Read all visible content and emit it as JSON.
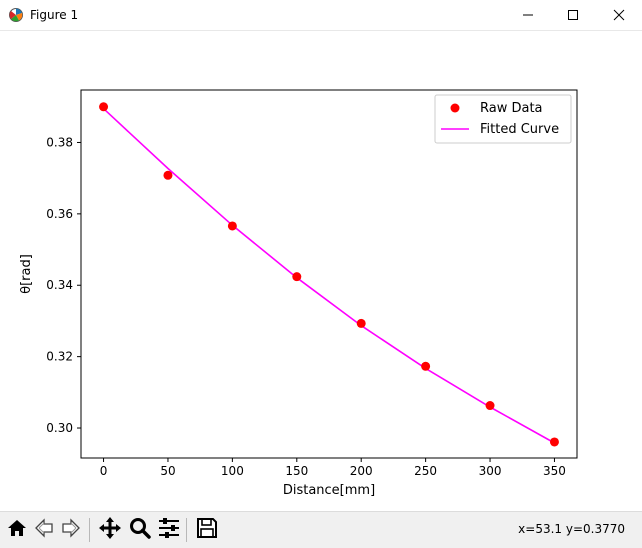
{
  "window": {
    "title": "Figure 1",
    "icons": {
      "app": "matplotlib-icon",
      "minimize": "minimize-icon",
      "maximize": "maximize-icon",
      "close": "close-icon"
    }
  },
  "toolbar": {
    "buttons": [
      {
        "name": "home",
        "icon": "home-icon"
      },
      {
        "name": "back",
        "icon": "back-arrow-icon"
      },
      {
        "name": "forward",
        "icon": "forward-arrow-icon"
      },
      {
        "name": "pan",
        "icon": "move-icon"
      },
      {
        "name": "zoom",
        "icon": "magnifier-icon"
      },
      {
        "name": "configure-subplots",
        "icon": "sliders-icon"
      },
      {
        "name": "save",
        "icon": "floppy-disk-icon"
      }
    ],
    "coordinates": "x=53.1 y=0.3770"
  },
  "chart_data": {
    "type": "scatter",
    "title": "",
    "xlabel": "Distance[mm]",
    "ylabel": "θ[rad]",
    "xlim": [
      -17.5,
      367.5
    ],
    "ylim": [
      0.2916,
      0.3947
    ],
    "xticks": [
      0,
      50,
      100,
      150,
      200,
      250,
      300,
      350
    ],
    "yticks": [
      0.3,
      0.32,
      0.34,
      0.36,
      0.38
    ],
    "ytick_labels": [
      "0.30",
      "0.32",
      "0.34",
      "0.36",
      "0.38"
    ],
    "grid": false,
    "legend_position": "top-right",
    "series": [
      {
        "name": "Raw Data",
        "kind": "scatter",
        "color": "#ff0000",
        "x": [
          0,
          50,
          100,
          150,
          200,
          250,
          300,
          350
        ],
        "y": [
          0.39,
          0.3708,
          0.3566,
          0.3424,
          0.3293,
          0.3173,
          0.3063,
          0.2961
        ]
      },
      {
        "name": "Fitted Curve",
        "kind": "line",
        "color": "#ff00ff",
        "x": [
          0,
          50,
          100,
          150,
          200,
          250,
          300,
          350
        ],
        "y": [
          0.3895,
          0.3727,
          0.3568,
          0.3421,
          0.3287,
          0.3167,
          0.3059,
          0.2958
        ]
      }
    ]
  }
}
